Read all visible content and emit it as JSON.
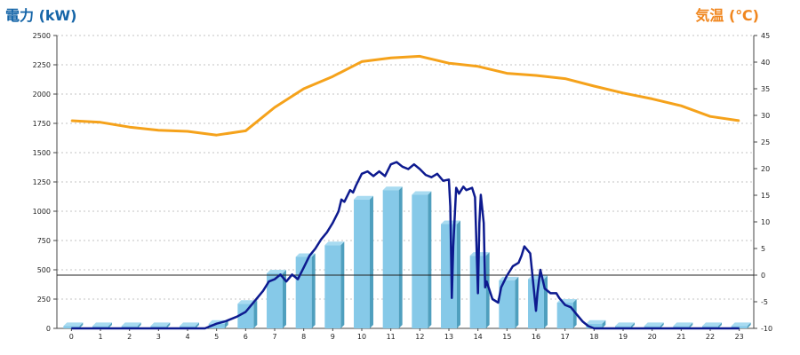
{
  "chart_data": {
    "type": "bar+line",
    "left_axis_label": "電力 (kW)",
    "right_axis_label": "気温 (℃)",
    "left_ylim": [
      0,
      2500
    ],
    "left_ticks": [
      0,
      250,
      500,
      750,
      1000,
      1250,
      1500,
      1750,
      2000,
      2250,
      2500
    ],
    "right_ylim": [
      -10,
      45
    ],
    "right_ticks": [
      -10,
      -5,
      0,
      5,
      10,
      15,
      20,
      25,
      30,
      35,
      40,
      45
    ],
    "categories": [
      "0",
      "1",
      "2",
      "3",
      "4",
      "5",
      "6",
      "7",
      "8",
      "9",
      "10",
      "11",
      "12",
      "13",
      "14",
      "15",
      "16",
      "17",
      "18",
      "19",
      "20",
      "21",
      "22",
      "23"
    ],
    "grid": "horizontal dashed",
    "colors": {
      "bars": "#86c9e8",
      "power_line": "#0d1a8f",
      "temp_line": "#f5a21b",
      "left_label": "#1565a8",
      "right_label": "#f0861e"
    },
    "hourly_power_bars": [
      20,
      20,
      20,
      20,
      20,
      40,
      210,
      470,
      610,
      710,
      1100,
      1180,
      1140,
      890,
      620,
      410,
      420,
      220,
      40,
      20,
      20,
      20,
      20,
      20
    ],
    "power_line": [
      [
        0,
        0
      ],
      [
        1,
        0
      ],
      [
        2,
        0
      ],
      [
        3,
        0
      ],
      [
        4,
        0
      ],
      [
        4.6,
        0
      ],
      [
        5,
        40
      ],
      [
        5.3,
        60
      ],
      [
        5.7,
        100
      ],
      [
        6,
        140
      ],
      [
        6.2,
        200
      ],
      [
        6.4,
        260
      ],
      [
        6.6,
        320
      ],
      [
        6.8,
        400
      ],
      [
        7,
        420
      ],
      [
        7.2,
        460
      ],
      [
        7.4,
        400
      ],
      [
        7.6,
        460
      ],
      [
        7.8,
        420
      ],
      [
        8,
        520
      ],
      [
        8.2,
        620
      ],
      [
        8.4,
        680
      ],
      [
        8.6,
        760
      ],
      [
        8.8,
        820
      ],
      [
        9,
        900
      ],
      [
        9.2,
        1000
      ],
      [
        9.3,
        1100
      ],
      [
        9.4,
        1080
      ],
      [
        9.6,
        1180
      ],
      [
        9.7,
        1160
      ],
      [
        9.8,
        1220
      ],
      [
        10,
        1320
      ],
      [
        10.2,
        1340
      ],
      [
        10.4,
        1300
      ],
      [
        10.6,
        1340
      ],
      [
        10.8,
        1300
      ],
      [
        11,
        1400
      ],
      [
        11.2,
        1420
      ],
      [
        11.4,
        1380
      ],
      [
        11.6,
        1360
      ],
      [
        11.8,
        1400
      ],
      [
        12,
        1360
      ],
      [
        12.2,
        1310
      ],
      [
        12.4,
        1290
      ],
      [
        12.6,
        1320
      ],
      [
        12.8,
        1260
      ],
      [
        13,
        1270
      ],
      [
        13.05,
        1040
      ],
      [
        13.1,
        260
      ],
      [
        13.15,
        700
      ],
      [
        13.25,
        1200
      ],
      [
        13.35,
        1150
      ],
      [
        13.5,
        1210
      ],
      [
        13.6,
        1180
      ],
      [
        13.8,
        1200
      ],
      [
        13.9,
        1120
      ],
      [
        14,
        300
      ],
      [
        14.05,
        900
      ],
      [
        14.1,
        1140
      ],
      [
        14.2,
        900
      ],
      [
        14.25,
        350
      ],
      [
        14.3,
        400
      ],
      [
        14.5,
        250
      ],
      [
        14.7,
        220
      ],
      [
        14.8,
        350
      ],
      [
        15,
        450
      ],
      [
        15.2,
        530
      ],
      [
        15.4,
        560
      ],
      [
        15.5,
        620
      ],
      [
        15.6,
        700
      ],
      [
        15.8,
        640
      ],
      [
        15.9,
        400
      ],
      [
        16,
        150
      ],
      [
        16.05,
        300
      ],
      [
        16.15,
        500
      ],
      [
        16.3,
        340
      ],
      [
        16.5,
        300
      ],
      [
        16.7,
        300
      ],
      [
        16.8,
        260
      ],
      [
        17,
        200
      ],
      [
        17.2,
        180
      ],
      [
        17.4,
        120
      ],
      [
        17.6,
        60
      ],
      [
        17.8,
        20
      ],
      [
        18,
        0
      ],
      [
        19,
        0
      ],
      [
        20,
        0
      ],
      [
        21,
        0
      ],
      [
        22,
        0
      ],
      [
        23,
        0
      ]
    ],
    "temperature_line": [
      [
        0,
        29.0
      ],
      [
        1,
        28.7
      ],
      [
        2,
        27.8
      ],
      [
        3,
        27.2
      ],
      [
        4,
        27.0
      ],
      [
        5,
        26.3
      ],
      [
        6,
        27.1
      ],
      [
        7,
        31.5
      ],
      [
        8,
        35.0
      ],
      [
        9,
        37.3
      ],
      [
        10,
        40.1
      ],
      [
        11,
        40.8
      ],
      [
        12,
        41.1
      ],
      [
        13,
        39.8
      ],
      [
        14,
        39.2
      ],
      [
        15,
        37.9
      ],
      [
        16,
        37.5
      ],
      [
        17,
        36.9
      ],
      [
        18,
        35.5
      ],
      [
        19,
        34.2
      ],
      [
        20,
        33.1
      ],
      [
        21,
        31.8
      ],
      [
        22,
        29.8
      ],
      [
        23,
        29.0
      ]
    ],
    "reference_line_value": 0
  }
}
